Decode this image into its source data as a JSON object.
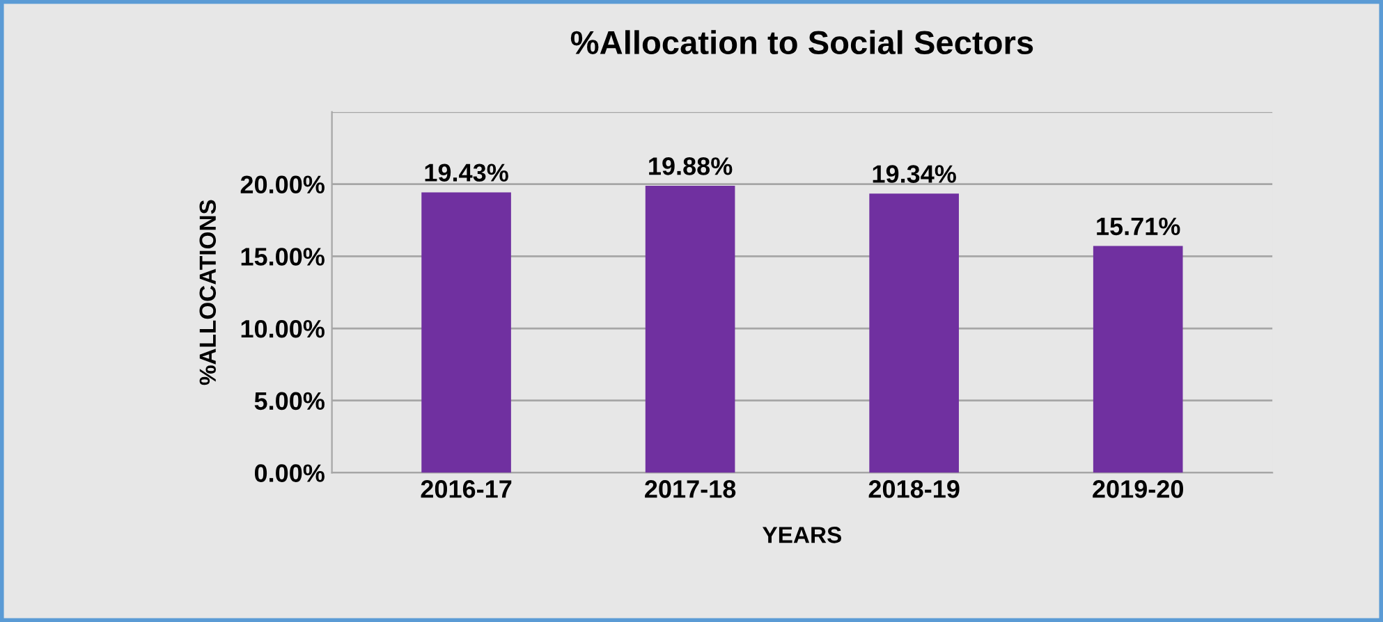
{
  "chart_data": {
    "type": "bar",
    "title": "%Allocation to Social Sectors",
    "xlabel": "YEARS",
    "ylabel": "%ALLOCATIONS",
    "categories": [
      "2016-17",
      "2017-18",
      "2018-19",
      "2019-20"
    ],
    "values": [
      19.43,
      19.88,
      19.34,
      15.71
    ],
    "value_labels": [
      "19.43%",
      "19.88%",
      "19.34%",
      "15.71%"
    ],
    "color": "#7030a0",
    "ylim": [
      0,
      25
    ],
    "yticks": [
      {
        "value": 0,
        "label": "0.00%"
      },
      {
        "value": 5,
        "label": "5.00%"
      },
      {
        "value": 10,
        "label": "10.00%"
      },
      {
        "value": 15,
        "label": "15.00%"
      },
      {
        "value": 20,
        "label": "20.00%"
      },
      {
        "value": 25,
        "label": null
      }
    ],
    "grid": "y"
  }
}
